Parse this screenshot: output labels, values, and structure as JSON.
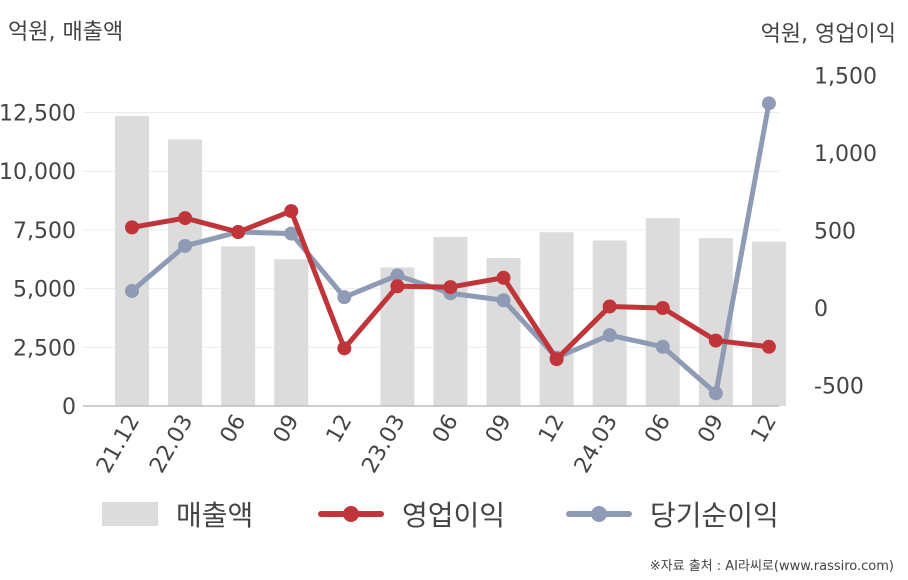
{
  "units": {
    "left": "억원, 매출액",
    "right": "억원, 영업이익"
  },
  "source": "※자료 출처 : AI라씨로(www.rassiro.com)",
  "colors": {
    "revenue": "#dcdcdc",
    "operating_profit": "#c0353a",
    "net_income": "#8f9bb5",
    "grid": "#ececec",
    "axis": "#bdbdbd"
  },
  "chart_data": {
    "type": "bar",
    "categories": [
      "21.12",
      "22.03",
      "06",
      "09",
      "12",
      "23.03",
      "06",
      "09",
      "12",
      "24.03",
      "06",
      "09",
      "12"
    ],
    "left_axis": {
      "ylim": [
        0,
        15000
      ],
      "ticks": [
        0,
        2500,
        5000,
        7500,
        10000,
        12500
      ],
      "tick_labels": [
        "0",
        "2,500",
        "5,000",
        "7,500",
        "10,000",
        "12,500"
      ]
    },
    "right_axis": {
      "ylim": [
        -700,
        1700
      ],
      "ticks": [
        -500,
        0,
        500,
        1000,
        1500
      ],
      "tick_labels": [
        "-500",
        "0",
        "500",
        "1,000",
        "1,500"
      ]
    },
    "series": [
      {
        "name": "매출액",
        "type": "bar",
        "axis": "left",
        "values": [
          12350,
          11350,
          6800,
          6250,
          0,
          5900,
          7200,
          6300,
          7400,
          7050,
          8000,
          7150,
          7000
        ]
      },
      {
        "name": "영업이익",
        "type": "line",
        "axis": "right",
        "values": [
          520,
          580,
          490,
          625,
          -260,
          140,
          135,
          195,
          -330,
          10,
          0,
          -210,
          -250
        ]
      },
      {
        "name": "당기순이익",
        "type": "line",
        "axis": "right",
        "values": [
          110,
          400,
          490,
          480,
          70,
          210,
          95,
          50,
          -320,
          -175,
          -250,
          -550,
          1320
        ]
      }
    ],
    "grid": true,
    "legend": "bottom"
  }
}
